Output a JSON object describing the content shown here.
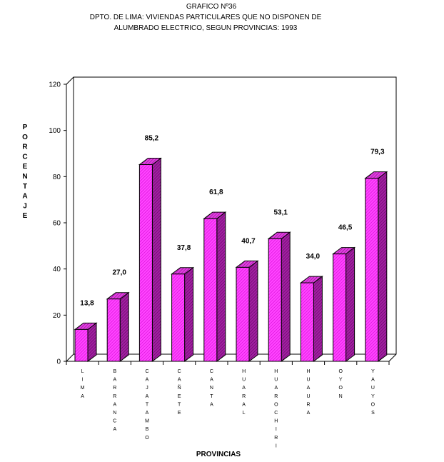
{
  "header": {
    "line1": "GRAFICO Nº36",
    "line2": "DPTO. DE LIMA: VIVIENDAS PARTICULARES QUE NO DISPONEN DE",
    "line3": "ALUMBRADO ELECTRICO, SEGUN PROVINCIAS: 1993"
  },
  "chart_data": {
    "type": "bar",
    "title": "GRAFICO Nº36 DPTO. DE LIMA: VIVIENDAS PARTICULARES QUE NO DISPONEN DE ALUMBRADO ELECTRICO, SEGUN PROVINCIAS: 1993",
    "xlabel": "PROVINCIAS",
    "ylabel": "PORCENTAJE",
    "ylim": [
      0,
      120
    ],
    "yticks": [
      0,
      20,
      40,
      60,
      80,
      100,
      120
    ],
    "categories": [
      "LIMA",
      "BARRANCA",
      "CAJATAMBO",
      "CAÑETE",
      "CANTA",
      "HUARAL",
      "HUAROCHIRI",
      "HUAURA",
      "OYON",
      "YAUYOS"
    ],
    "values": [
      13.8,
      27.0,
      85.2,
      37.8,
      61.8,
      40.7,
      53.1,
      34.0,
      46.5,
      79.3
    ],
    "value_labels": [
      "13,8",
      "27,0",
      "85,2",
      "37,8",
      "61,8",
      "40,7",
      "53,1",
      "34,0",
      "46,5",
      "79,3"
    ],
    "grid": false,
    "bar_style": "3d",
    "colors": {
      "bar_front": "#ff33ff",
      "bar_side": "#993399",
      "bar_top": "#cc33cc"
    }
  }
}
